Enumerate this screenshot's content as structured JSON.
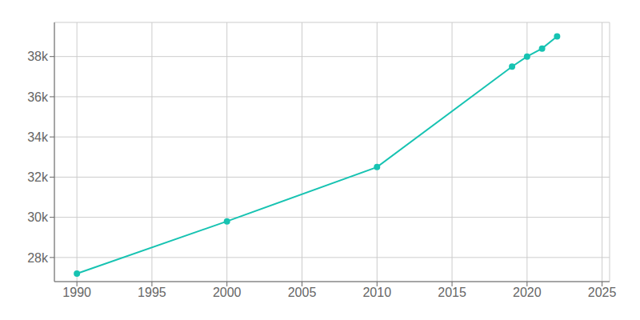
{
  "chart_data": {
    "type": "line",
    "x": [
      1990,
      2000,
      2010,
      2019,
      2020,
      2021,
      2022
    ],
    "values": [
      27200,
      29800,
      32500,
      37500,
      38000,
      38400,
      39000
    ],
    "color": "#17c3b2",
    "marker": "circle",
    "xlim": [
      1988.5,
      2025.5
    ],
    "ylim": [
      26800,
      39700
    ],
    "xticks": [
      1990,
      1995,
      2000,
      2005,
      2010,
      2015,
      2020,
      2025
    ],
    "yticks": [
      {
        "value": 28000,
        "label": "28k"
      },
      {
        "value": 30000,
        "label": "30k"
      },
      {
        "value": 32000,
        "label": "32k"
      },
      {
        "value": 34000,
        "label": "34k"
      },
      {
        "value": 36000,
        "label": "36k"
      },
      {
        "value": 38000,
        "label": "38k"
      }
    ],
    "grid": true
  }
}
